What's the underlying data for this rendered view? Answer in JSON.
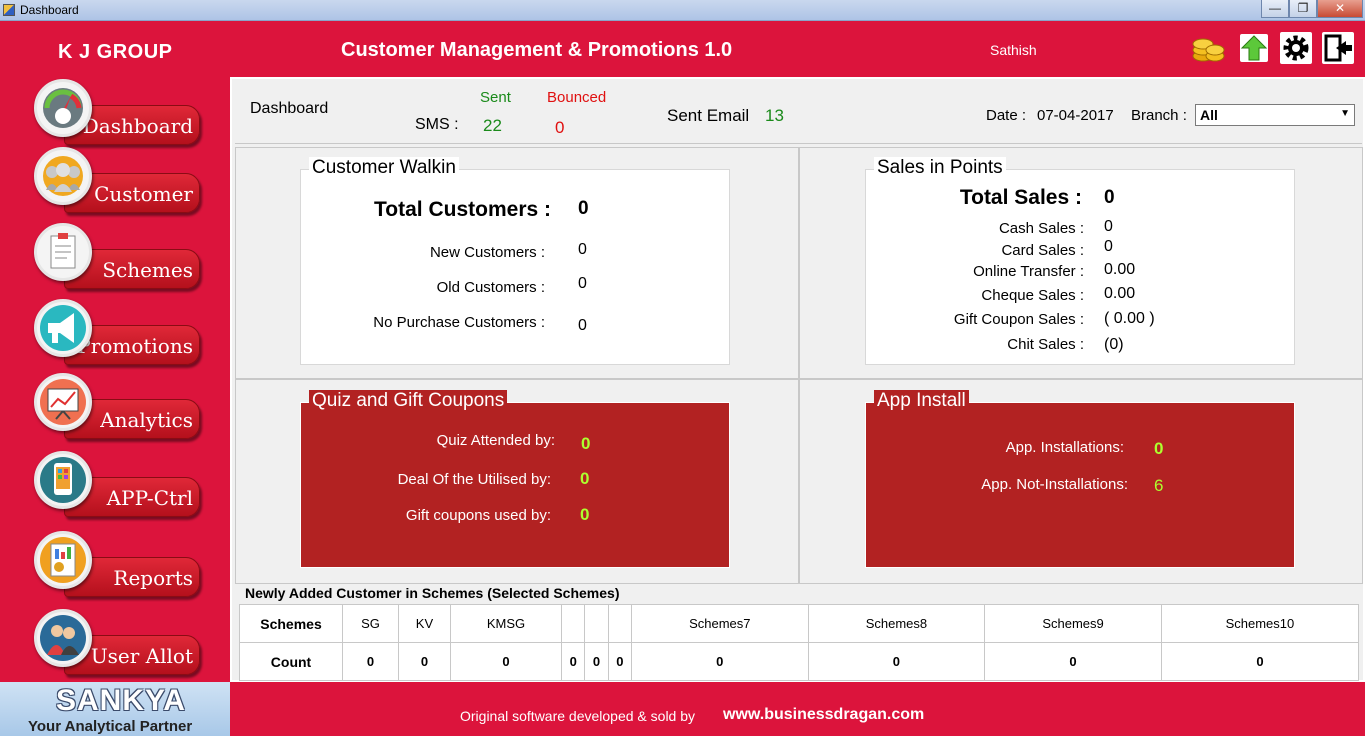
{
  "window": {
    "title": "Dashboard",
    "min": "—",
    "max": "❐",
    "close": "✕"
  },
  "header": {
    "brand": "K J GROUP",
    "app_title": "Customer Management & Promotions 1.0",
    "user": "Sathish"
  },
  "nav": [
    {
      "label": "Dashboard",
      "icon": "gauge-icon",
      "glyph": "◔"
    },
    {
      "label": "Customer",
      "icon": "people-icon",
      "glyph": "👥"
    },
    {
      "label": "Schemes",
      "icon": "clipboard-icon",
      "glyph": "📋"
    },
    {
      "label": "Promotions",
      "icon": "megaphone-icon",
      "glyph": "📢"
    },
    {
      "label": "Analytics",
      "icon": "chart-board-icon",
      "glyph": "📈"
    },
    {
      "label": "APP-Ctrl",
      "icon": "mobile-phone-icon",
      "glyph": "📱"
    },
    {
      "label": "Reports",
      "icon": "report-icon",
      "glyph": "📊"
    },
    {
      "label": "User Allot",
      "icon": "users-icon",
      "glyph": "👫"
    }
  ],
  "sankya": {
    "title": "SANKYA",
    "tagline": "Your Analytical Partner"
  },
  "footer": {
    "text": "Original software developed  & sold by",
    "site": "www.businessdragan.com"
  },
  "topbar": {
    "title": "Dashboard",
    "sms_label": "SMS :",
    "sent_label": "Sent",
    "sent_value": "22",
    "bounced_label": "Bounced",
    "bounced_value": "0",
    "email_label": "Sent Email",
    "email_value": "13",
    "date_label": "Date :",
    "date_value": "07-04-2017",
    "branch_label": "Branch :",
    "branch_value": "All"
  },
  "walkin": {
    "title": "Customer Walkin",
    "total_label": "Total Customers :",
    "total_value": "0",
    "new_label": "New Customers :",
    "new_value": "0",
    "old_label": "Old Customers :",
    "old_value": "0",
    "nopurchase_label": "No Purchase Customers :",
    "nopurchase_value": "0"
  },
  "sales": {
    "title": "Sales in Points",
    "total_label": "Total Sales  :",
    "total_value": "0",
    "rows": [
      {
        "label": "Cash Sales :",
        "value": "0"
      },
      {
        "label": "Card Sales :",
        "value": "0"
      },
      {
        "label": "Online Transfer :",
        "value": "0.00"
      },
      {
        "label": "Cheque Sales :",
        "value": "0.00"
      },
      {
        "label": "Gift Coupon Sales :",
        "value": "( 0.00 )"
      },
      {
        "label": "Chit Sales :",
        "value": "(0)"
      }
    ]
  },
  "quiz": {
    "title": "Quiz and Gift Coupons",
    "rows": [
      {
        "label": "Quiz Attended by:",
        "value": "0"
      },
      {
        "label": "Deal Of the Utilised by:",
        "value": "0"
      },
      {
        "label": "Gift coupons used by:",
        "value": "0"
      }
    ]
  },
  "app": {
    "title": "App Install",
    "rows": [
      {
        "label": "App. Installations:",
        "value": "0"
      },
      {
        "label": "App. Not-Installations:",
        "value": "6"
      }
    ]
  },
  "schemes": {
    "caption": "Newly Added Customer in Schemes (Selected Schemes)",
    "row_head": "Schemes",
    "count_head": "Count",
    "columns": [
      "SG",
      "KV",
      "KMSG",
      "",
      "",
      "",
      "Schemes7",
      "Schemes8",
      "Schemes9",
      "Schemes10"
    ],
    "counts": [
      "0",
      "0",
      "0",
      "0",
      "0",
      "0",
      "0",
      "0",
      "0",
      "0"
    ]
  }
}
